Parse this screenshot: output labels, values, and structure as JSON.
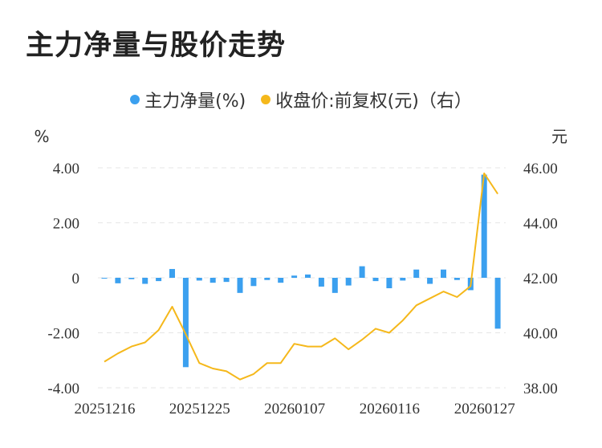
{
  "chart_data": {
    "type": "bar+line",
    "title": "主力净量与股价走势",
    "legend": {
      "placement": "top-center",
      "items": [
        {
          "label": "主力净量(%)",
          "color": "#3ba0ef"
        },
        {
          "label": "收盘价:前复权(元)（右）",
          "color": "#f5b81b"
        }
      ]
    },
    "y_left": {
      "unit": "%",
      "range": [
        -4,
        4
      ],
      "ticks": [
        "4.00",
        "2.00",
        "0",
        "-2.00",
        "-4.00"
      ]
    },
    "y_right": {
      "unit": "元",
      "range": [
        38,
        46
      ],
      "ticks": [
        "46.00",
        "44.00",
        "42.00",
        "40.00",
        "38.00"
      ]
    },
    "x_tick_labels": [
      {
        "label": "20251216",
        "index": 0
      },
      {
        "label": "20251225",
        "index": 7
      },
      {
        "label": "20260107",
        "index": 14
      },
      {
        "label": "20260116",
        "index": 21
      },
      {
        "label": "20260127",
        "index": 28
      }
    ],
    "grid": true,
    "series": [
      {
        "name": "主力净量(%)",
        "type": "bar",
        "color": "#3ba0ef",
        "values": [
          -0.02,
          -0.2,
          -0.05,
          -0.22,
          -0.12,
          0.32,
          -3.25,
          -0.1,
          -0.18,
          -0.15,
          -0.55,
          -0.3,
          -0.08,
          -0.18,
          0.08,
          0.12,
          -0.32,
          -0.55,
          -0.28,
          0.42,
          -0.12,
          -0.38,
          -0.1,
          0.3,
          -0.22,
          0.3,
          -0.08,
          -0.45,
          3.75,
          -1.85
        ]
      },
      {
        "name": "收盘价:前复权(元)（右）",
        "type": "line",
        "color": "#f5b81b",
        "values": [
          38.95,
          39.25,
          39.5,
          39.65,
          40.1,
          40.95,
          39.95,
          38.9,
          38.7,
          38.6,
          38.3,
          38.5,
          38.9,
          38.9,
          39.6,
          39.5,
          39.5,
          39.8,
          39.4,
          39.75,
          40.15,
          40.0,
          40.45,
          41.0,
          41.25,
          41.5,
          41.3,
          41.7,
          45.8,
          45.05
        ]
      }
    ]
  }
}
